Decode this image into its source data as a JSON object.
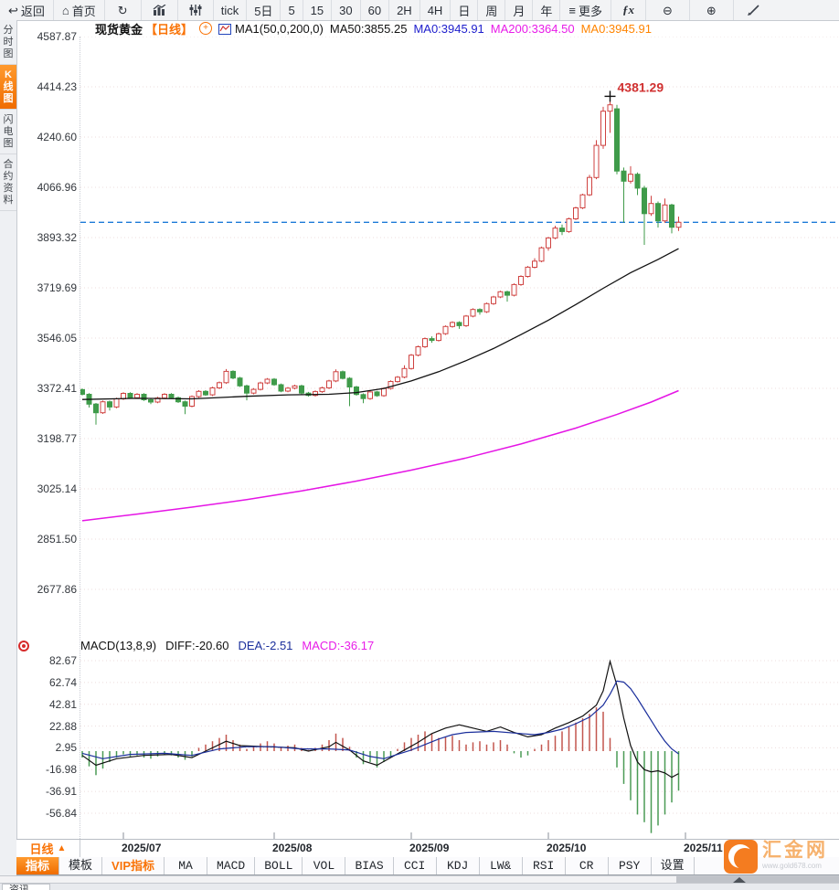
{
  "toolbar": {
    "back_label": "返回",
    "home_label": "首页",
    "periods": [
      "tick",
      "5日",
      "5",
      "15",
      "30",
      "60",
      "2H",
      "4H",
      "日",
      "周",
      "月",
      "年"
    ],
    "more_label": "更多",
    "fx_label": "ƒx"
  },
  "sidebar": {
    "items": [
      {
        "label": "分时图",
        "active": false
      },
      {
        "label": "K线图",
        "active": true
      },
      {
        "label": "闪电图",
        "active": false
      },
      {
        "label": "合约资料",
        "active": false
      }
    ]
  },
  "chart_header": {
    "symbol": "现货黄金",
    "period_tag": "【日线】",
    "ma_settings": "MA1(50,0,200,0)",
    "ma50_label": "MA50:3855.25",
    "ma0_blue_label": "MA0:3945.91",
    "ma200_label": "MA200:3364.50",
    "ma0_orange_label": "MA0:3945.91"
  },
  "macd_header": {
    "title": "MACD(13,8,9)",
    "diff_label": "DIFF:-20.60",
    "dea_label": "DEA:-2.51",
    "macd_label": "MACD:-36.17"
  },
  "bottom": {
    "period_label": "日线",
    "period_arrow": "▲",
    "tabs": [
      {
        "label": "指标",
        "style": "selected"
      },
      {
        "label": "模板"
      },
      {
        "label": "VIP指标",
        "style": "vip"
      },
      {
        "label": "MA"
      },
      {
        "label": "MACD"
      },
      {
        "label": "BOLL"
      },
      {
        "label": "VOL"
      },
      {
        "label": "BIAS"
      },
      {
        "label": "CCI"
      },
      {
        "label": "KDJ"
      },
      {
        "label": "LW&"
      },
      {
        "label": "RSI"
      },
      {
        "label": "CR"
      },
      {
        "label": "PSY"
      },
      {
        "label": "设置"
      }
    ],
    "news_tab": "资讯"
  },
  "logo": {
    "name": "汇金网",
    "url": "www.gold678.com"
  },
  "chart_data": {
    "type": "candlestick+macd",
    "title": "现货黄金 日线",
    "price_axis_ticks": [
      4587.87,
      4414.23,
      4240.6,
      4066.96,
      3893.32,
      3719.69,
      3546.05,
      3372.41,
      3198.77,
      3025.14,
      2851.5,
      2677.86
    ],
    "x_labels": [
      {
        "label": "2025/07",
        "index": 6
      },
      {
        "label": "2025/08",
        "index": 28
      },
      {
        "label": "2025/09",
        "index": 48
      },
      {
        "label": "2025/10",
        "index": 68
      },
      {
        "label": "2025/11",
        "index": 88
      }
    ],
    "last_price": 3945.91,
    "peak_annotation": {
      "value": "4381.29",
      "price": 4381.29,
      "index": 77
    },
    "candles": [
      [
        3368,
        3372,
        3348,
        3352
      ],
      [
        3352,
        3356,
        3306,
        3318
      ],
      [
        3318,
        3322,
        3247,
        3288
      ],
      [
        3288,
        3330,
        3284,
        3326
      ],
      [
        3326,
        3330,
        3296,
        3308
      ],
      [
        3308,
        3340,
        3304,
        3336
      ],
      [
        3336,
        3359,
        3332,
        3355
      ],
      [
        3355,
        3359,
        3336,
        3340
      ],
      [
        3340,
        3356,
        3336,
        3352
      ],
      [
        3352,
        3356,
        3329,
        3333
      ],
      [
        3333,
        3337,
        3318,
        3325
      ],
      [
        3325,
        3343,
        3321,
        3339
      ],
      [
        3339,
        3356,
        3335,
        3352
      ],
      [
        3352,
        3356,
        3336,
        3340
      ],
      [
        3340,
        3344,
        3322,
        3326
      ],
      [
        3326,
        3330,
        3283,
        3311
      ],
      [
        3311,
        3348,
        3307,
        3344
      ],
      [
        3344,
        3366,
        3340,
        3362
      ],
      [
        3362,
        3366,
        3346,
        3350
      ],
      [
        3350,
        3378,
        3346,
        3374
      ],
      [
        3374,
        3396,
        3370,
        3392
      ],
      [
        3392,
        3439,
        3388,
        3431
      ],
      [
        3431,
        3435,
        3404,
        3408
      ],
      [
        3408,
        3412,
        3377,
        3381
      ],
      [
        3381,
        3385,
        3331,
        3356
      ],
      [
        3356,
        3373,
        3352,
        3369
      ],
      [
        3369,
        3395,
        3365,
        3391
      ],
      [
        3391,
        3408,
        3387,
        3404
      ],
      [
        3404,
        3408,
        3381,
        3385
      ],
      [
        3385,
        3389,
        3359,
        3363
      ],
      [
        3363,
        3377,
        3359,
        3373
      ],
      [
        3373,
        3385,
        3369,
        3381
      ],
      [
        3381,
        3385,
        3352,
        3356
      ],
      [
        3356,
        3360,
        3344,
        3348
      ],
      [
        3348,
        3365,
        3344,
        3361
      ],
      [
        3361,
        3378,
        3357,
        3374
      ],
      [
        3374,
        3402,
        3370,
        3398
      ],
      [
        3398,
        3438,
        3394,
        3430
      ],
      [
        3430,
        3434,
        3403,
        3407
      ],
      [
        3407,
        3411,
        3311,
        3377
      ],
      [
        3377,
        3381,
        3347,
        3351
      ],
      [
        3351,
        3355,
        3321,
        3337
      ],
      [
        3337,
        3364,
        3333,
        3360
      ],
      [
        3360,
        3364,
        3343,
        3347
      ],
      [
        3347,
        3376,
        3343,
        3372
      ],
      [
        3372,
        3400,
        3368,
        3396
      ],
      [
        3396,
        3415,
        3392,
        3411
      ],
      [
        3411,
        3452,
        3407,
        3441
      ],
      [
        3441,
        3491,
        3437,
        3487
      ],
      [
        3487,
        3520,
        3483,
        3516
      ],
      [
        3516,
        3548,
        3512,
        3544
      ],
      [
        3544,
        3552,
        3530,
        3538
      ],
      [
        3538,
        3565,
        3534,
        3561
      ],
      [
        3561,
        3590,
        3557,
        3586
      ],
      [
        3586,
        3604,
        3582,
        3600
      ],
      [
        3600,
        3604,
        3578,
        3589
      ],
      [
        3589,
        3626,
        3585,
        3622
      ],
      [
        3622,
        3649,
        3618,
        3645
      ],
      [
        3645,
        3649,
        3627,
        3637
      ],
      [
        3637,
        3669,
        3633,
        3665
      ],
      [
        3665,
        3692,
        3661,
        3688
      ],
      [
        3688,
        3710,
        3684,
        3706
      ],
      [
        3706,
        3710,
        3672,
        3694
      ],
      [
        3694,
        3735,
        3690,
        3731
      ],
      [
        3731,
        3763,
        3727,
        3759
      ],
      [
        3759,
        3795,
        3755,
        3791
      ],
      [
        3791,
        3822,
        3787,
        3812
      ],
      [
        3812,
        3862,
        3808,
        3858
      ],
      [
        3858,
        3896,
        3848,
        3892
      ],
      [
        3892,
        3934,
        3888,
        3926
      ],
      [
        3926,
        3938,
        3902,
        3914
      ],
      [
        3914,
        3962,
        3910,
        3958
      ],
      [
        3958,
        4000,
        3954,
        3996
      ],
      [
        3996,
        4045,
        3992,
        4041
      ],
      [
        4041,
        4110,
        4037,
        4101
      ],
      [
        4101,
        4230,
        4095,
        4212
      ],
      [
        4212,
        4345,
        4200,
        4330
      ],
      [
        4330,
        4381.29,
        4255,
        4352
      ],
      [
        4338,
        4352,
        4112,
        4123
      ],
      [
        4123,
        4135,
        3945,
        4088
      ],
      [
        4088,
        4140,
        4080,
        4112
      ],
      [
        4112,
        4118,
        4040,
        4064
      ],
      [
        4064,
        4072,
        3868,
        3976
      ],
      [
        3976,
        4038,
        3968,
        4011
      ],
      [
        4011,
        4018,
        3928,
        3951
      ],
      [
        3951,
        4028,
        3944,
        4006
      ],
      [
        4006,
        4010,
        3908,
        3929
      ],
      [
        3929,
        3966,
        3916,
        3945.91
      ]
    ],
    "ma50": {
      "current": 3855.25,
      "points": [
        [
          0,
          3334
        ],
        [
          8,
          3338
        ],
        [
          16,
          3336
        ],
        [
          24,
          3345
        ],
        [
          30,
          3350
        ],
        [
          36,
          3352
        ],
        [
          40,
          3358
        ],
        [
          44,
          3372
        ],
        [
          48,
          3398
        ],
        [
          52,
          3430
        ],
        [
          56,
          3468
        ],
        [
          60,
          3510
        ],
        [
          64,
          3558
        ],
        [
          68,
          3608
        ],
        [
          72,
          3662
        ],
        [
          76,
          3718
        ],
        [
          80,
          3772
        ],
        [
          84,
          3818
        ],
        [
          87,
          3855.25
        ]
      ]
    },
    "ma200": {
      "current": 3364.5,
      "points": [
        [
          0,
          2915
        ],
        [
          8,
          2938
        ],
        [
          16,
          2962
        ],
        [
          24,
          2988
        ],
        [
          32,
          3018
        ],
        [
          40,
          3052
        ],
        [
          48,
          3090
        ],
        [
          56,
          3132
        ],
        [
          64,
          3180
        ],
        [
          72,
          3235
        ],
        [
          78,
          3282
        ],
        [
          83,
          3325
        ],
        [
          87,
          3364.5
        ]
      ]
    },
    "macd": {
      "params": "13,8,9",
      "diff_current": -20.6,
      "dea_current": -2.51,
      "macd_current": -36.17,
      "axis_ticks": [
        82.67,
        62.74,
        42.81,
        22.88,
        2.95,
        -16.98,
        -36.91,
        -56.84
      ],
      "histogram": [
        -6,
        -14,
        -22,
        -16,
        -10,
        -6,
        -3,
        -5,
        -4,
        -6,
        -7,
        -5,
        -3,
        -4,
        -6,
        -8,
        -5,
        3,
        6,
        9,
        12,
        15,
        10,
        6,
        2,
        4,
        7,
        9,
        7,
        4,
        5,
        6,
        3,
        1,
        3,
        6,
        10,
        16,
        12,
        4,
        -6,
        -12,
        -10,
        -15,
        -10,
        -5,
        2,
        8,
        12,
        15,
        18,
        16,
        12,
        13,
        14,
        10,
        6,
        8,
        9,
        6,
        8,
        10,
        6,
        -2,
        -6,
        -4,
        2,
        6,
        10,
        14,
        18,
        22,
        26,
        30,
        34,
        40,
        36,
        12,
        -15,
        -30,
        -45,
        -58,
        -65,
        -75,
        -68,
        -58,
        -47,
        -36.17
      ],
      "diff_points": [
        [
          0,
          -4
        ],
        [
          2,
          -13
        ],
        [
          5,
          -7
        ],
        [
          9,
          -4
        ],
        [
          13,
          -3
        ],
        [
          16,
          -6
        ],
        [
          18,
          0
        ],
        [
          21,
          9
        ],
        [
          23,
          5
        ],
        [
          27,
          4
        ],
        [
          31,
          3
        ],
        [
          33,
          0
        ],
        [
          36,
          4
        ],
        [
          37,
          8
        ],
        [
          39,
          1
        ],
        [
          41,
          -9
        ],
        [
          43,
          -13
        ],
        [
          45,
          -6
        ],
        [
          47,
          1
        ],
        [
          49,
          8
        ],
        [
          51,
          16
        ],
        [
          53,
          21
        ],
        [
          55,
          24
        ],
        [
          57,
          21
        ],
        [
          59,
          18
        ],
        [
          61,
          22
        ],
        [
          63,
          17
        ],
        [
          65,
          13
        ],
        [
          67,
          15
        ],
        [
          69,
          21
        ],
        [
          71,
          26
        ],
        [
          73,
          32
        ],
        [
          75,
          42
        ],
        [
          76,
          55
        ],
        [
          77,
          82
        ],
        [
          78,
          60
        ],
        [
          79,
          30
        ],
        [
          80,
          5
        ],
        [
          81,
          -10
        ],
        [
          82,
          -17
        ],
        [
          83,
          -19
        ],
        [
          84,
          -18
        ],
        [
          85,
          -20
        ],
        [
          86,
          -24
        ],
        [
          87,
          -20.6
        ]
      ],
      "dea_points": [
        [
          0,
          -2
        ],
        [
          3,
          -7
        ],
        [
          7,
          -3
        ],
        [
          12,
          -2
        ],
        [
          16,
          -4
        ],
        [
          20,
          2
        ],
        [
          24,
          4
        ],
        [
          28,
          4
        ],
        [
          32,
          2
        ],
        [
          36,
          2
        ],
        [
          39,
          1
        ],
        [
          42,
          -5
        ],
        [
          44,
          -7
        ],
        [
          46,
          -3
        ],
        [
          48,
          1
        ],
        [
          50,
          6
        ],
        [
          52,
          11
        ],
        [
          54,
          15
        ],
        [
          56,
          17
        ],
        [
          60,
          18
        ],
        [
          64,
          16
        ],
        [
          66,
          15
        ],
        [
          68,
          17
        ],
        [
          70,
          20
        ],
        [
          72,
          25
        ],
        [
          74,
          31
        ],
        [
          76,
          42
        ],
        [
          77,
          52
        ],
        [
          78,
          64
        ],
        [
          79,
          63
        ],
        [
          80,
          57
        ],
        [
          81,
          48
        ],
        [
          82,
          38
        ],
        [
          83,
          28
        ],
        [
          84,
          18
        ],
        [
          85,
          9
        ],
        [
          86,
          2
        ],
        [
          87,
          -2.51
        ]
      ]
    },
    "colors": {
      "up": "#cf4240",
      "down": "#3f9b4a",
      "ma50": "#111111",
      "ma200": "#e515e5",
      "dashed": "#1d7bd8",
      "diff": "#111111",
      "dea": "#1b2f9c",
      "hist_up": "#c2564e",
      "hist_down": "#4a9b55",
      "annotation": "#d03030",
      "grid": "#ecdcdc"
    }
  }
}
